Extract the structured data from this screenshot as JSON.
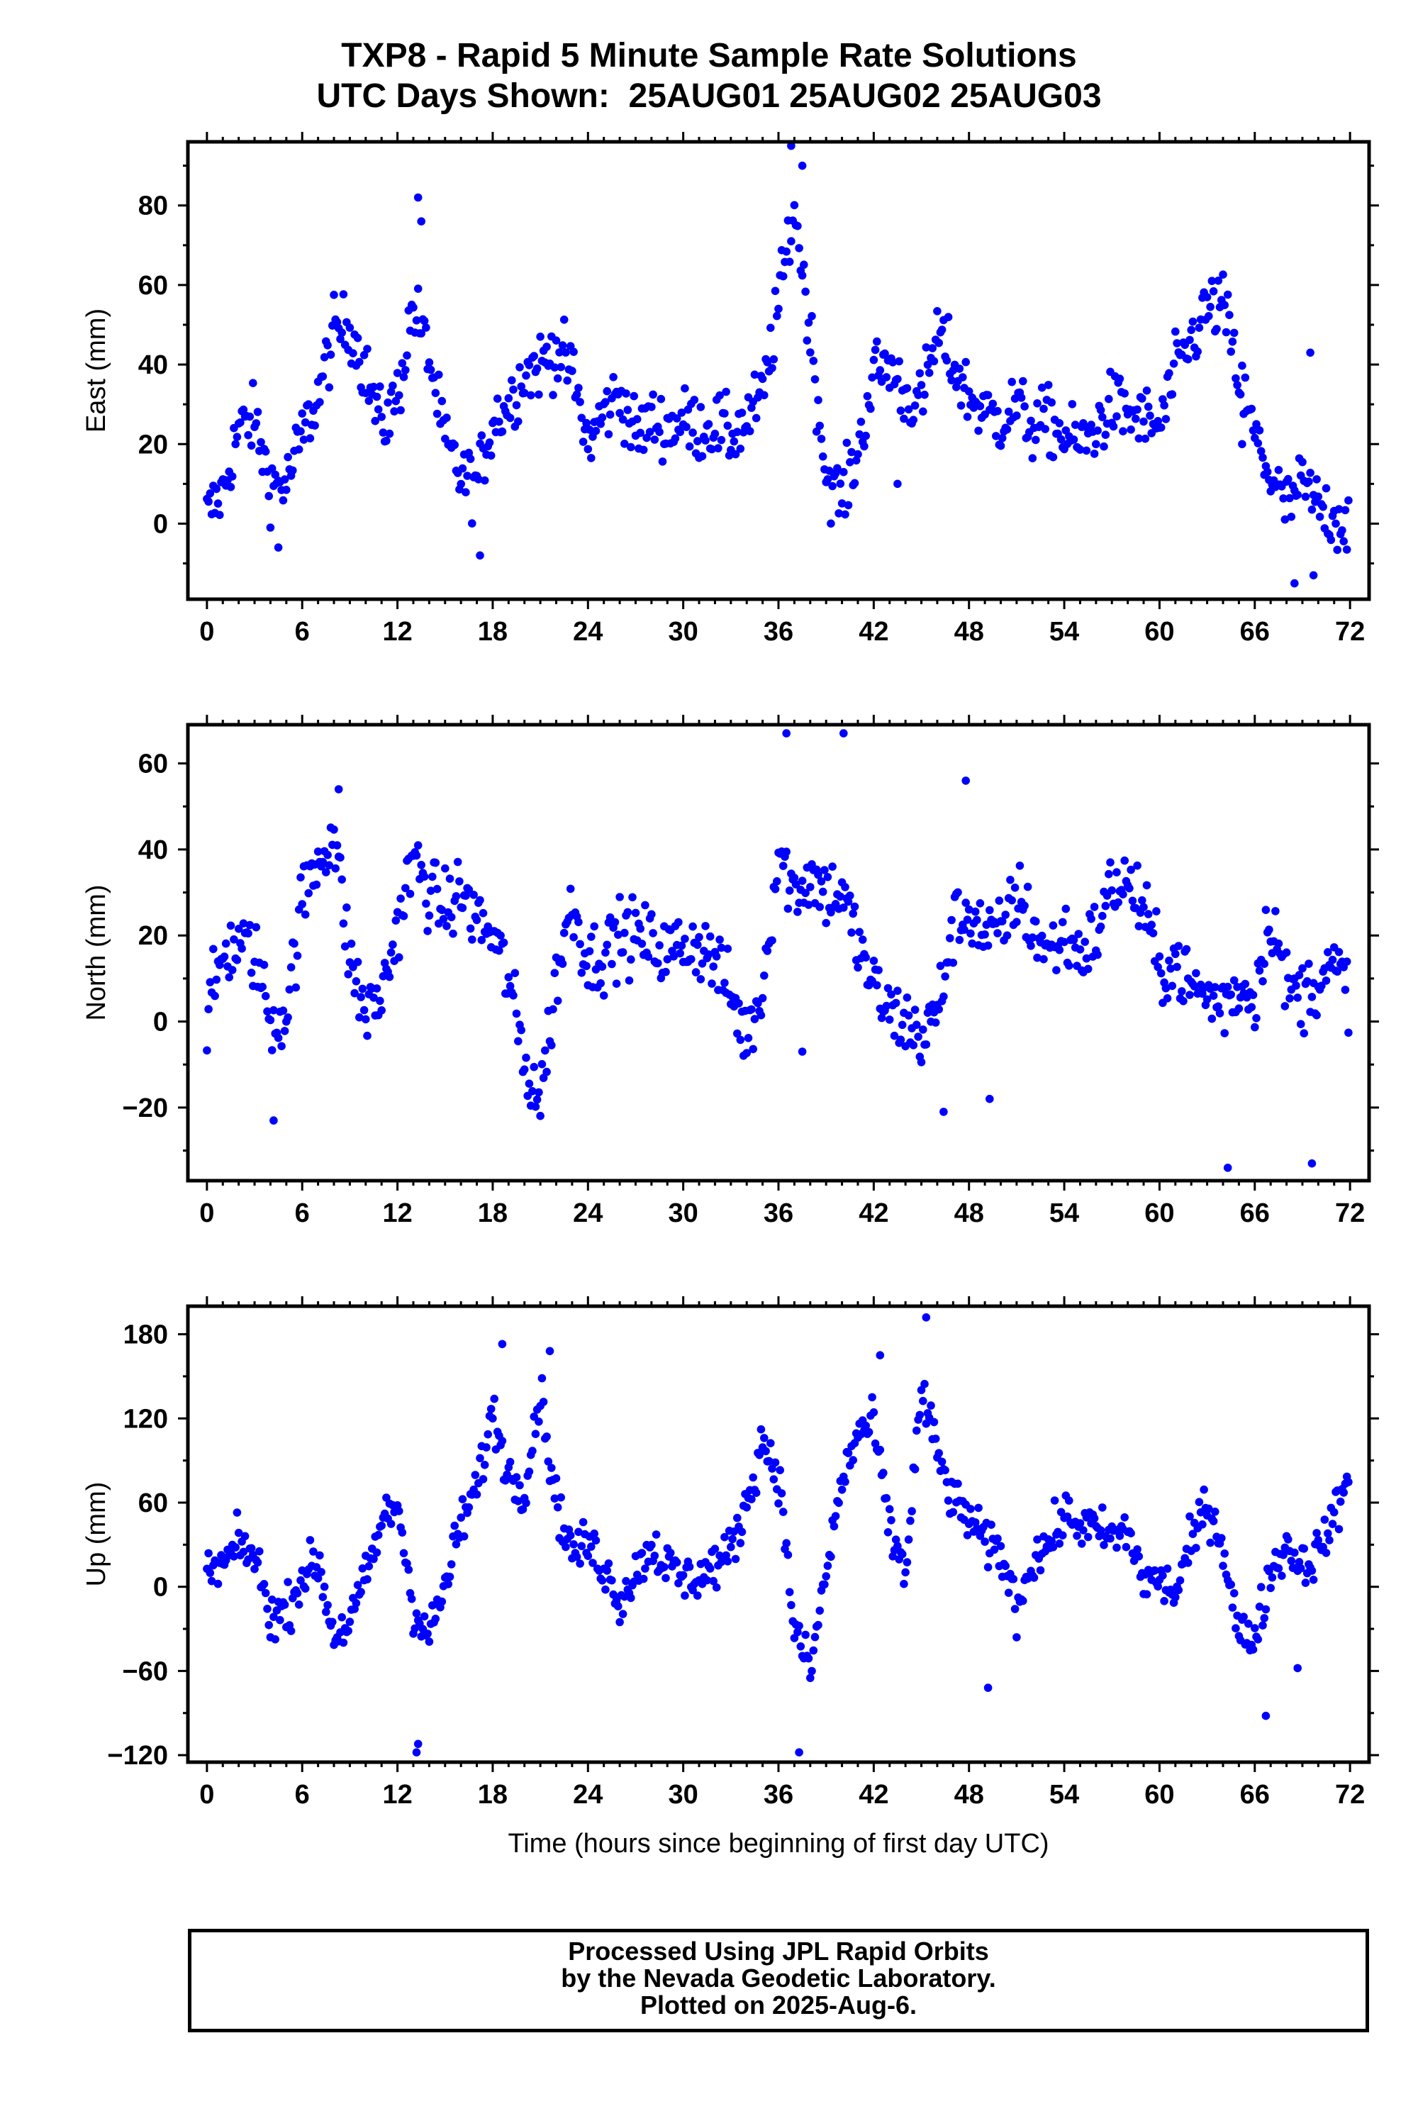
{
  "title": {
    "line1": "TXP8 - Rapid 5 Minute Sample Rate Solutions",
    "line2": "UTC Days Shown:  25AUG01 25AUG02 25AUG03"
  },
  "xlabel": "Time (hours since beginning of first day UTC)",
  "footer": {
    "line1": "Processed Using JPL Rapid Orbits",
    "line2": "by the Nevada Geodetic Laboratory.",
    "line3": "Plotted on 2025-Aug-6."
  },
  "colors": {
    "points": "#0000ff",
    "frame": "#000000"
  },
  "chart_data": [
    {
      "type": "scatter",
      "ylabel": "East (mm)",
      "xlim": [
        -1.2,
        73.2
      ],
      "ylim": [
        -19,
        96
      ],
      "xticks": [
        0,
        6,
        12,
        18,
        24,
        30,
        36,
        42,
        48,
        54,
        60,
        66,
        72
      ],
      "yticks": [
        0,
        20,
        40,
        60,
        80
      ],
      "anchors": [
        [
          0,
          2
        ],
        [
          1,
          8
        ],
        [
          2,
          24
        ],
        [
          3,
          26
        ],
        [
          4,
          10
        ],
        [
          5,
          10
        ],
        [
          6,
          22
        ],
        [
          7,
          32
        ],
        [
          8,
          48
        ],
        [
          9,
          50
        ],
        [
          10,
          38
        ],
        [
          11,
          24
        ],
        [
          12,
          32
        ],
        [
          13,
          55
        ],
        [
          14,
          42
        ],
        [
          15,
          20
        ],
        [
          16,
          12
        ],
        [
          17,
          10
        ],
        [
          18,
          26
        ],
        [
          19,
          30
        ],
        [
          20,
          38
        ],
        [
          21,
          40
        ],
        [
          22,
          44
        ],
        [
          23,
          38
        ],
        [
          24,
          20
        ],
        [
          25,
          28
        ],
        [
          26,
          33
        ],
        [
          27,
          22
        ],
        [
          28,
          26
        ],
        [
          29,
          24
        ],
        [
          30,
          26
        ],
        [
          31,
          24
        ],
        [
          32,
          25
        ],
        [
          33,
          22
        ],
        [
          34,
          26
        ],
        [
          35,
          32
        ],
        [
          36,
          55
        ],
        [
          37,
          80
        ],
        [
          38,
          48
        ],
        [
          39,
          12
        ],
        [
          40,
          6
        ],
        [
          41,
          18
        ],
        [
          42,
          38
        ],
        [
          43,
          40
        ],
        [
          44,
          32
        ],
        [
          45,
          30
        ],
        [
          46,
          48
        ],
        [
          47,
          40
        ],
        [
          48,
          32
        ],
        [
          49,
          28
        ],
        [
          50,
          26
        ],
        [
          51,
          30
        ],
        [
          52,
          24
        ],
        [
          53,
          26
        ],
        [
          54,
          22
        ],
        [
          55,
          20
        ],
        [
          56,
          24
        ],
        [
          57,
          30
        ],
        [
          58,
          28
        ],
        [
          59,
          26
        ],
        [
          60,
          24
        ],
        [
          61,
          38
        ],
        [
          62,
          46
        ],
        [
          63,
          54
        ],
        [
          64,
          55
        ],
        [
          65,
          36
        ],
        [
          66,
          22
        ],
        [
          67,
          12
        ],
        [
          68,
          4
        ],
        [
          69,
          10
        ],
        [
          70,
          4
        ],
        [
          71,
          2
        ],
        [
          72,
          0
        ]
      ],
      "noise": 6,
      "outliers": [
        [
          13.3,
          82
        ],
        [
          13.5,
          76
        ],
        [
          17.2,
          -8
        ],
        [
          4.5,
          -6
        ],
        [
          36.8,
          95
        ],
        [
          37.5,
          90
        ],
        [
          68.5,
          -15
        ],
        [
          69.5,
          43
        ],
        [
          69.7,
          -13
        ],
        [
          65.2,
          20
        ],
        [
          43.5,
          10
        ]
      ]
    },
    {
      "type": "scatter",
      "ylabel": "North (mm)",
      "xlim": [
        -1.2,
        73.2
      ],
      "ylim": [
        -37,
        69
      ],
      "xticks": [
        0,
        6,
        12,
        18,
        24,
        30,
        36,
        42,
        48,
        54,
        60,
        66,
        72
      ],
      "yticks": [
        -20,
        0,
        20,
        40,
        60
      ],
      "anchors": [
        [
          0,
          0
        ],
        [
          1,
          16
        ],
        [
          2,
          18
        ],
        [
          3,
          16
        ],
        [
          4,
          0
        ],
        [
          5,
          2
        ],
        [
          6,
          28
        ],
        [
          7,
          38
        ],
        [
          8,
          44
        ],
        [
          9,
          14
        ],
        [
          10,
          2
        ],
        [
          11,
          6
        ],
        [
          12,
          22
        ],
        [
          13,
          38
        ],
        [
          14,
          30
        ],
        [
          15,
          26
        ],
        [
          16,
          30
        ],
        [
          17,
          24
        ],
        [
          18,
          20
        ],
        [
          19,
          10
        ],
        [
          20,
          -10
        ],
        [
          21,
          -18
        ],
        [
          22,
          10
        ],
        [
          23,
          28
        ],
        [
          24,
          14
        ],
        [
          25,
          16
        ],
        [
          26,
          20
        ],
        [
          27,
          20
        ],
        [
          28,
          18
        ],
        [
          29,
          16
        ],
        [
          30,
          18
        ],
        [
          31,
          18
        ],
        [
          32,
          14
        ],
        [
          33,
          6
        ],
        [
          34,
          -4
        ],
        [
          35,
          8
        ],
        [
          36,
          40
        ],
        [
          37,
          30
        ],
        [
          38,
          34
        ],
        [
          39,
          30
        ],
        [
          40,
          30
        ],
        [
          41,
          18
        ],
        [
          42,
          8
        ],
        [
          43,
          2
        ],
        [
          44,
          0
        ],
        [
          45,
          -4
        ],
        [
          46,
          2
        ],
        [
          47,
          22
        ],
        [
          48,
          26
        ],
        [
          49,
          20
        ],
        [
          50,
          20
        ],
        [
          51,
          30
        ],
        [
          52,
          22
        ],
        [
          53,
          16
        ],
        [
          54,
          20
        ],
        [
          55,
          16
        ],
        [
          56,
          20
        ],
        [
          57,
          32
        ],
        [
          58,
          32
        ],
        [
          59,
          26
        ],
        [
          60,
          12
        ],
        [
          61,
          14
        ],
        [
          62,
          8
        ],
        [
          63,
          6
        ],
        [
          64,
          4
        ],
        [
          65,
          8
        ],
        [
          66,
          6
        ],
        [
          67,
          26
        ],
        [
          68,
          8
        ],
        [
          69,
          6
        ],
        [
          70,
          10
        ],
        [
          71,
          12
        ],
        [
          72,
          8
        ]
      ],
      "noise": 6,
      "outliers": [
        [
          4.2,
          -23
        ],
        [
          36.5,
          67
        ],
        [
          37.5,
          -7
        ],
        [
          40.1,
          67
        ],
        [
          46.4,
          -21
        ],
        [
          47.8,
          56
        ],
        [
          49.3,
          -18
        ],
        [
          64.3,
          -34
        ],
        [
          69.6,
          -33
        ],
        [
          8.3,
          54
        ]
      ]
    },
    {
      "type": "scatter",
      "ylabel": "Up (mm)",
      "xlim": [
        -1.2,
        73.2
      ],
      "ylim": [
        -125,
        200
      ],
      "xticks": [
        0,
        6,
        12,
        18,
        24,
        30,
        36,
        42,
        48,
        54,
        60,
        66,
        72
      ],
      "yticks": [
        -120,
        -60,
        0,
        60,
        120,
        180
      ],
      "anchors": [
        [
          0,
          8
        ],
        [
          1,
          15
        ],
        [
          2,
          30
        ],
        [
          3,
          22
        ],
        [
          4,
          -20
        ],
        [
          5,
          -18
        ],
        [
          6,
          8
        ],
        [
          7,
          18
        ],
        [
          8,
          -35
        ],
        [
          9,
          -25
        ],
        [
          10,
          5
        ],
        [
          11,
          45
        ],
        [
          12,
          60
        ],
        [
          13,
          -15
        ],
        [
          14,
          -35
        ],
        [
          15,
          0
        ],
        [
          16,
          45
        ],
        [
          17,
          70
        ],
        [
          18,
          125
        ],
        [
          19,
          80
        ],
        [
          20,
          70
        ],
        [
          21,
          140
        ],
        [
          22,
          60
        ],
        [
          23,
          25
        ],
        [
          24,
          30
        ],
        [
          25,
          15
        ],
        [
          26,
          -10
        ],
        [
          27,
          10
        ],
        [
          28,
          30
        ],
        [
          29,
          15
        ],
        [
          30,
          5
        ],
        [
          31,
          8
        ],
        [
          32,
          15
        ],
        [
          33,
          25
        ],
        [
          34,
          60
        ],
        [
          35,
          105
        ],
        [
          36,
          80
        ],
        [
          37,
          -30
        ],
        [
          38,
          -60
        ],
        [
          39,
          10
        ],
        [
          40,
          75
        ],
        [
          41,
          110
        ],
        [
          42,
          115
        ],
        [
          43,
          40
        ],
        [
          44,
          10
        ],
        [
          45,
          140
        ],
        [
          46,
          95
        ],
        [
          47,
          60
        ],
        [
          48,
          50
        ],
        [
          49,
          30
        ],
        [
          50,
          25
        ],
        [
          51,
          -15
        ],
        [
          52,
          20
        ],
        [
          53,
          30
        ],
        [
          54,
          50
        ],
        [
          55,
          45
        ],
        [
          56,
          40
        ],
        [
          57,
          35
        ],
        [
          58,
          40
        ],
        [
          59,
          5
        ],
        [
          60,
          5
        ],
        [
          61,
          -5
        ],
        [
          62,
          30
        ],
        [
          63,
          60
        ],
        [
          64,
          30
        ],
        [
          65,
          -35
        ],
        [
          66,
          -35
        ],
        [
          67,
          10
        ],
        [
          68,
          30
        ],
        [
          69,
          15
        ],
        [
          70,
          25
        ],
        [
          71,
          50
        ],
        [
          72,
          80
        ]
      ],
      "noise": 12,
      "outliers": [
        [
          13.3,
          -112
        ],
        [
          13.2,
          -118
        ],
        [
          37.3,
          -118
        ],
        [
          45.3,
          192
        ],
        [
          49.2,
          -72
        ],
        [
          66.7,
          -92
        ],
        [
          68.7,
          -58
        ],
        [
          18.6,
          173
        ],
        [
          21.6,
          168
        ],
        [
          42.4,
          165
        ]
      ]
    }
  ]
}
